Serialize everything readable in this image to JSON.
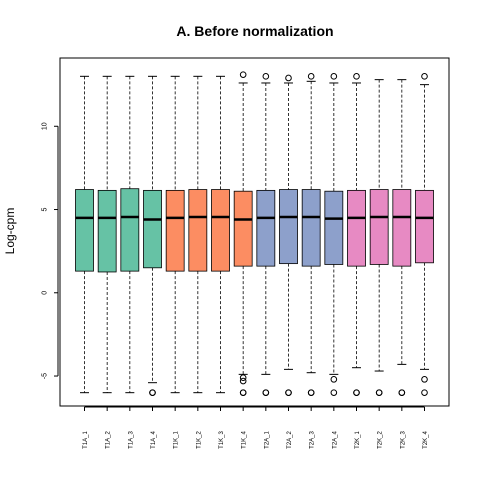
{
  "chart_data": {
    "type": "box",
    "title": "A. Before normalization",
    "xlabel": "",
    "ylabel": "Log-cpm",
    "ylim": [
      -6.8,
      14.1
    ],
    "yticks": [
      -5,
      0,
      5,
      10
    ],
    "categories": [
      "T1A_1",
      "T1A_2",
      "T1A_3",
      "T1A_4",
      "T1K_1",
      "T1K_2",
      "T1K_3",
      "T1K_4",
      "T2A_1",
      "T2A_2",
      "T2A_3",
      "T2A_4",
      "T2K_1",
      "T2K_2",
      "T2K_3",
      "T2K_4"
    ],
    "colors": [
      "#66c2a5",
      "#66c2a5",
      "#66c2a5",
      "#66c2a5",
      "#fc8d62",
      "#fc8d62",
      "#fc8d62",
      "#fc8d62",
      "#8da0cb",
      "#8da0cb",
      "#8da0cb",
      "#8da0cb",
      "#e78ac3",
      "#e78ac3",
      "#e78ac3",
      "#e78ac3"
    ],
    "boxes": [
      {
        "min": -6.0,
        "q1": 1.3,
        "median": 4.5,
        "q3": 6.2,
        "max": 13.0,
        "outliers": []
      },
      {
        "min": -6.0,
        "q1": 1.25,
        "median": 4.5,
        "q3": 6.15,
        "max": 13.0,
        "outliers": []
      },
      {
        "min": -6.0,
        "q1": 1.3,
        "median": 4.55,
        "q3": 6.25,
        "max": 13.0,
        "outliers": []
      },
      {
        "min": -5.4,
        "q1": 1.5,
        "median": 4.4,
        "q3": 6.15,
        "max": 13.0,
        "outliers": [
          -6.0,
          -6.0
        ]
      },
      {
        "min": -6.0,
        "q1": 1.3,
        "median": 4.5,
        "q3": 6.15,
        "max": 13.0,
        "outliers": []
      },
      {
        "min": -6.0,
        "q1": 1.3,
        "median": 4.55,
        "q3": 6.2,
        "max": 13.0,
        "outliers": []
      },
      {
        "min": -6.0,
        "q1": 1.3,
        "median": 4.55,
        "q3": 6.2,
        "max": 13.0,
        "outliers": []
      },
      {
        "min": -4.9,
        "q1": 1.6,
        "median": 4.4,
        "q3": 6.1,
        "max": 12.6,
        "outliers": [
          13.1,
          -5.1,
          -5.3,
          -6.0,
          -6.0
        ]
      },
      {
        "min": -4.9,
        "q1": 1.6,
        "median": 4.5,
        "q3": 6.15,
        "max": 12.6,
        "outliers": [
          13.0,
          -6.0,
          -6.0
        ]
      },
      {
        "min": -4.6,
        "q1": 1.75,
        "median": 4.55,
        "q3": 6.2,
        "max": 12.6,
        "outliers": [
          12.9,
          -6.0,
          -6.0
        ]
      },
      {
        "min": -4.8,
        "q1": 1.6,
        "median": 4.55,
        "q3": 6.2,
        "max": 12.7,
        "outliers": [
          13.0,
          -6.0,
          -6.0
        ]
      },
      {
        "min": -4.9,
        "q1": 1.7,
        "median": 4.45,
        "q3": 6.1,
        "max": 12.6,
        "outliers": [
          13.0,
          -5.2,
          -6.0
        ]
      },
      {
        "min": -4.5,
        "q1": 1.6,
        "median": 4.5,
        "q3": 6.15,
        "max": 12.6,
        "outliers": [
          13.0,
          -6.0,
          -6.0
        ]
      },
      {
        "min": -4.7,
        "q1": 1.7,
        "median": 4.55,
        "q3": 6.2,
        "max": 12.8,
        "outliers": [
          -6.0,
          -6.0
        ]
      },
      {
        "min": -4.3,
        "q1": 1.6,
        "median": 4.55,
        "q3": 6.2,
        "max": 12.8,
        "outliers": [
          -6.0,
          -6.0
        ]
      },
      {
        "min": -4.6,
        "q1": 1.8,
        "median": 4.5,
        "q3": 6.15,
        "max": 12.5,
        "outliers": [
          13.0,
          -5.2,
          -6.0
        ]
      }
    ]
  }
}
